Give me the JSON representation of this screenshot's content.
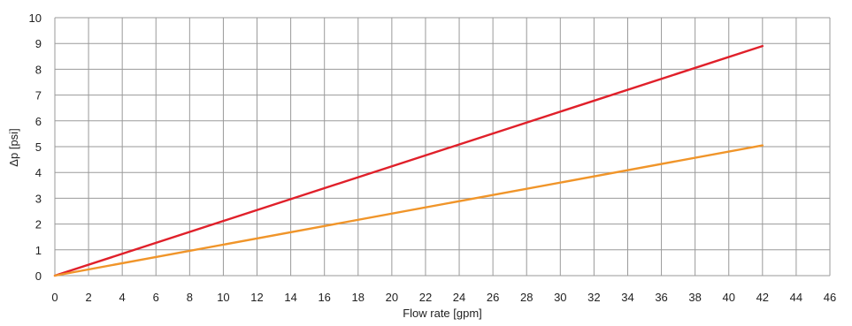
{
  "chart_data": {
    "type": "line",
    "title": "",
    "xlabel": "Flow rate [gpm]",
    "ylabel": "Δp [psi]",
    "xlim": [
      0,
      46
    ],
    "ylim": [
      0,
      10
    ],
    "x_ticks": [
      0,
      2,
      4,
      6,
      8,
      10,
      12,
      14,
      16,
      18,
      20,
      22,
      24,
      26,
      28,
      30,
      32,
      34,
      36,
      38,
      40,
      42,
      44,
      46
    ],
    "y_ticks": [
      0,
      1,
      2,
      3,
      4,
      5,
      6,
      7,
      8,
      9,
      10
    ],
    "grid": true,
    "legend": "none",
    "series": [
      {
        "color": "#e0202a",
        "x": [
          0,
          42
        ],
        "y": [
          0,
          8.9
        ]
      },
      {
        "color": "#f0952a",
        "x": [
          0,
          42
        ],
        "y": [
          0,
          5.05
        ]
      }
    ]
  }
}
